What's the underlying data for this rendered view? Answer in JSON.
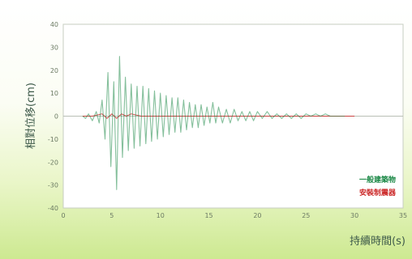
{
  "chart_data": {
    "type": "line",
    "ylabel": "相對位移(cm)",
    "xlabel": "持續時間(s)",
    "xlim": [
      0,
      35
    ],
    "ylim": [
      -40,
      40
    ],
    "xticks": [
      0,
      5,
      10,
      15,
      20,
      25,
      30,
      35
    ],
    "yticks": [
      40,
      30,
      20,
      10,
      0,
      -10,
      -20,
      -30,
      -40
    ],
    "grid": false,
    "legend_position": "bottom-right",
    "series": [
      {
        "name": "一般建築物",
        "color": "#1f8a49",
        "x": [
          2.0,
          2.3,
          2.6,
          3.0,
          3.4,
          3.7,
          4.0,
          4.3,
          4.6,
          4.9,
          5.2,
          5.5,
          5.8,
          6.1,
          6.4,
          6.7,
          7.0,
          7.3,
          7.6,
          7.9,
          8.2,
          8.5,
          8.8,
          9.1,
          9.4,
          9.7,
          10.0,
          10.3,
          10.6,
          10.9,
          11.2,
          11.5,
          11.8,
          12.1,
          12.4,
          12.7,
          13.0,
          13.3,
          13.6,
          13.9,
          14.2,
          14.5,
          14.8,
          15.1,
          15.4,
          15.7,
          16.0,
          16.4,
          16.8,
          17.2,
          17.6,
          18.0,
          18.4,
          18.8,
          19.2,
          19.6,
          20.0,
          20.5,
          21.0,
          21.5,
          22.0,
          22.5,
          23.0,
          23.5,
          24.0,
          24.5,
          25.0,
          25.5,
          26.0,
          26.5,
          27.0,
          27.5,
          28.0,
          28.5,
          29.0
        ],
        "y": [
          0,
          -1,
          1,
          -2,
          2,
          -3,
          7,
          -10,
          19,
          -22,
          15,
          -32,
          26,
          -18,
          17,
          -15,
          14,
          -14,
          13,
          -13,
          13,
          -12,
          12,
          -11,
          11,
          -10,
          10,
          -9,
          9,
          -8,
          8,
          -7,
          8,
          -7,
          7,
          -6,
          6,
          -5,
          5,
          -5,
          5,
          -4,
          4,
          -3,
          6,
          -3,
          4,
          -3,
          3,
          -3,
          3,
          -2,
          2,
          -2,
          2,
          -2,
          2,
          -1,
          2,
          -1,
          1,
          -1,
          1,
          -1,
          1,
          -1,
          1,
          0,
          1,
          0,
          1,
          0,
          0,
          0,
          0
        ]
      },
      {
        "name": "安裝制震器",
        "color": "#cc2b2b",
        "x": [
          2.0,
          3.0,
          4.0,
          4.5,
          5.0,
          5.5,
          6.0,
          6.5,
          7.0,
          8.0,
          9.0,
          10.0,
          12.0,
          14.0,
          16.0,
          18.0,
          20.0,
          24.0,
          28.0,
          30.0
        ],
        "y": [
          0,
          0,
          1,
          -1,
          1,
          -1,
          1,
          0,
          1,
          0,
          0,
          0,
          0,
          0,
          0,
          0,
          0,
          0,
          0,
          0
        ]
      }
    ]
  }
}
